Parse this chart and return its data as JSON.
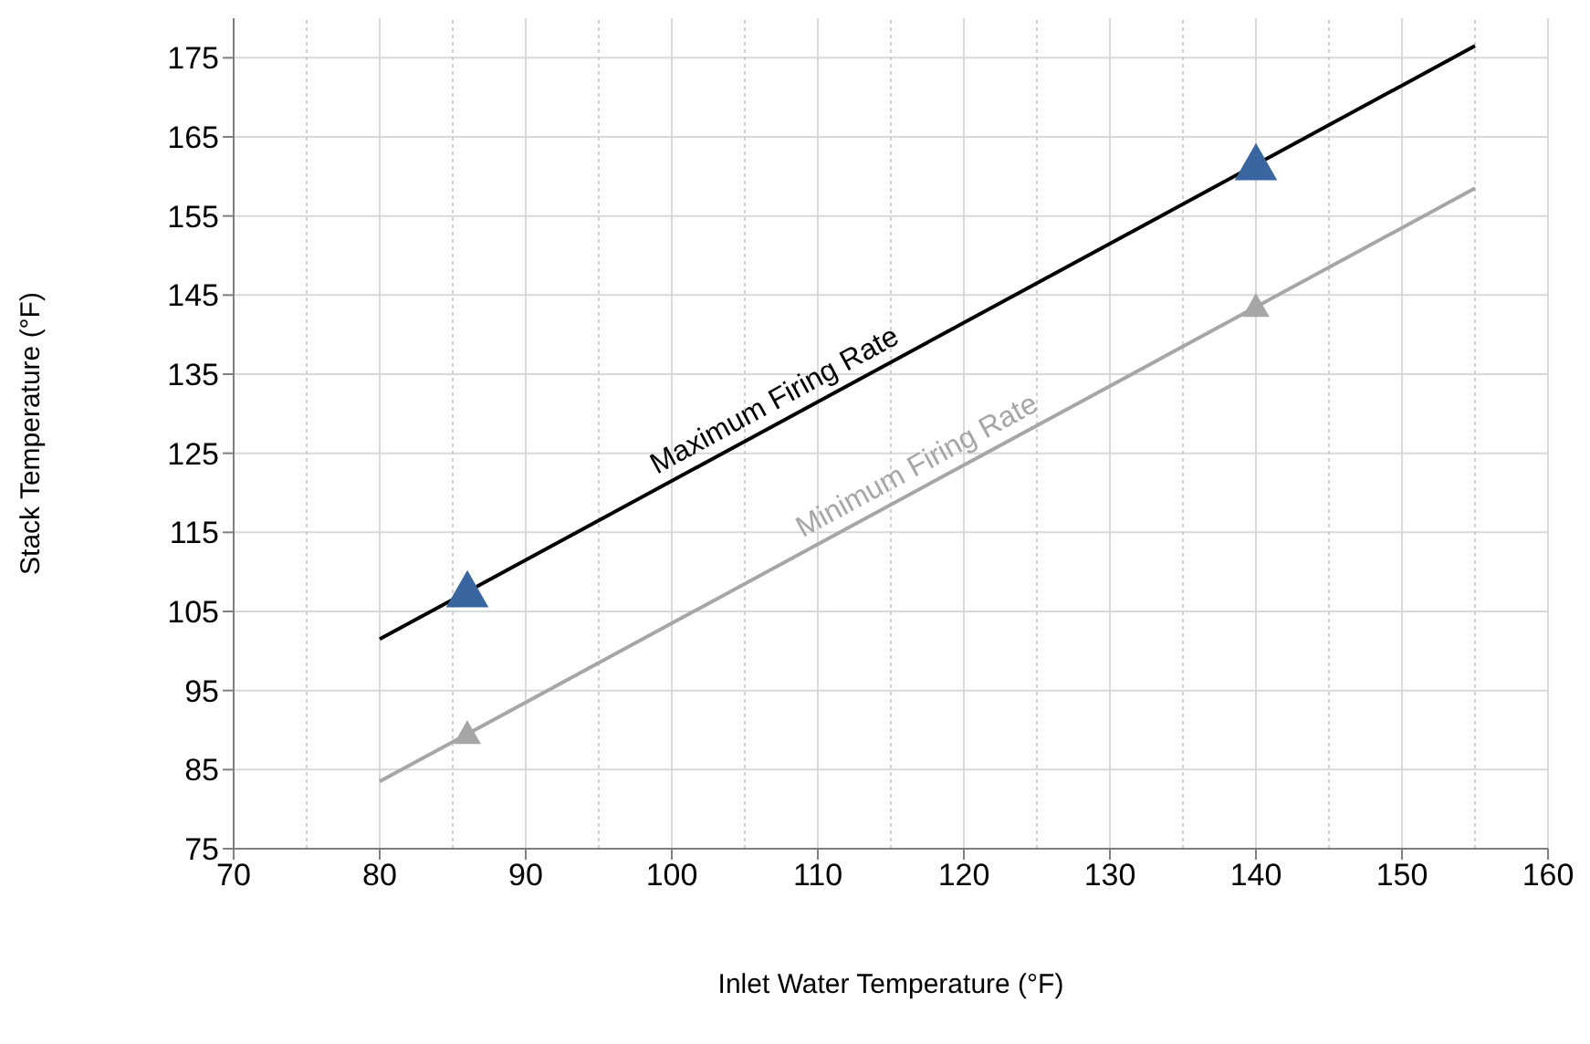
{
  "chart_data": {
    "type": "scatter",
    "xlabel": "Inlet Water Temperature (°F)",
    "ylabel": "Stack Temperature (°F)",
    "xlim": [
      70,
      160
    ],
    "ylim": [
      75,
      180
    ],
    "xticks": [
      70,
      {
        "value": 75,
        "label": null
      },
      80,
      {
        "value": 85,
        "label": null
      },
      90,
      {
        "value": 95,
        "label": null
      },
      100,
      {
        "value": 105,
        "label": null
      },
      110,
      {
        "value": 115,
        "label": null
      },
      120,
      {
        "value": 125,
        "label": null
      },
      130,
      {
        "value": 135,
        "label": null
      },
      140,
      {
        "value": 145,
        "label": null
      },
      150,
      {
        "value": 155,
        "label": null
      },
      160
    ],
    "yticks": [
      75,
      85,
      95,
      105,
      115,
      125,
      135,
      145,
      155,
      165,
      175
    ],
    "grid": true,
    "marker": "triangle",
    "series": [
      {
        "type": "line",
        "name": "Maximum Firing Rate",
        "color": "#000000",
        "x": [
          80,
          155
        ],
        "values": [
          101.5,
          176.5
        ],
        "marker": "none"
      },
      {
        "type": "line",
        "name": "Minimum Firing Rate",
        "color": "#a6a6a6",
        "x": [
          80,
          155
        ],
        "values": [
          83.5,
          158.5
        ],
        "marker": "none"
      },
      {
        "color": "#3a66a0",
        "x": [
          86,
          140
        ],
        "values": [
          107.5,
          161.5
        ]
      },
      {
        "color": "#a6a6a6",
        "x": [
          86,
          140
        ],
        "values": [
          89.5,
          143.5
        ]
      }
    ]
  }
}
